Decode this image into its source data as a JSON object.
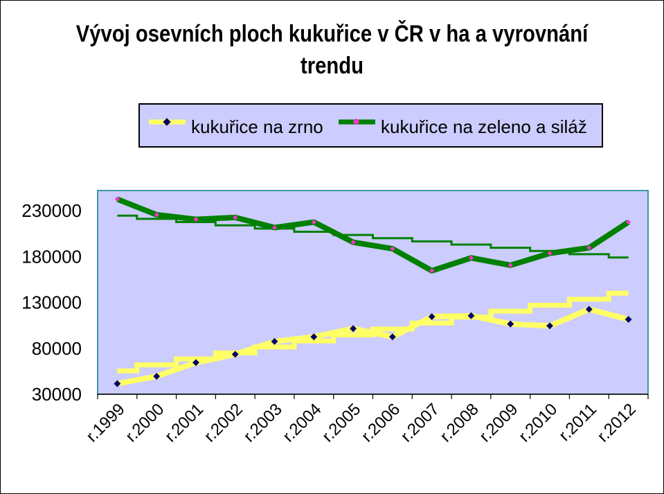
{
  "chart_data": {
    "type": "line",
    "title": "Vývoj osevních ploch kukuřice v ČR v ha a vyrovnání trendu",
    "categories": [
      "r.1999",
      "r.2000",
      "r.2001",
      "r.2002",
      "r.2003",
      "r.2004",
      "r.2005",
      "r.2006",
      "r.2007",
      "r.2008",
      "r.2009",
      "r.2010",
      "r.2011",
      "r.2012"
    ],
    "ylim": [
      30000,
      230000
    ],
    "yticks": [
      "230000",
      "180000",
      "130000",
      "80000",
      "30000"
    ],
    "series": [
      {
        "name": "kukuřice na zrno",
        "color": "#ffff66",
        "marker_color": "#000066",
        "values": [
          40000,
          48000,
          63000,
          72000,
          86000,
          91000,
          100000,
          91000,
          113000,
          114000,
          105000,
          103000,
          121000,
          110000
        ]
      },
      {
        "name": "kukuřice na zeleno a siláž",
        "color": "#008000",
        "marker_color": "#ff33cc",
        "values": [
          241000,
          224000,
          219000,
          221000,
          210000,
          216000,
          194000,
          187000,
          163000,
          177000,
          169000,
          182000,
          188000,
          216000
        ]
      }
    ],
    "trends": [
      {
        "series": "kukuřice na zrno",
        "values": [
          54000,
          60500,
          67000,
          73500,
          80000,
          86500,
          93000,
          99500,
          106000,
          112500,
          119000,
          125500,
          132000,
          138500
        ]
      },
      {
        "series": "kukuřice na zeleno a siláž",
        "values": [
          223000,
          219500,
          216000,
          212500,
          209000,
          205500,
          202000,
          198500,
          195000,
          191500,
          188000,
          184500,
          181000,
          177500
        ]
      }
    ],
    "legend": "top"
  }
}
